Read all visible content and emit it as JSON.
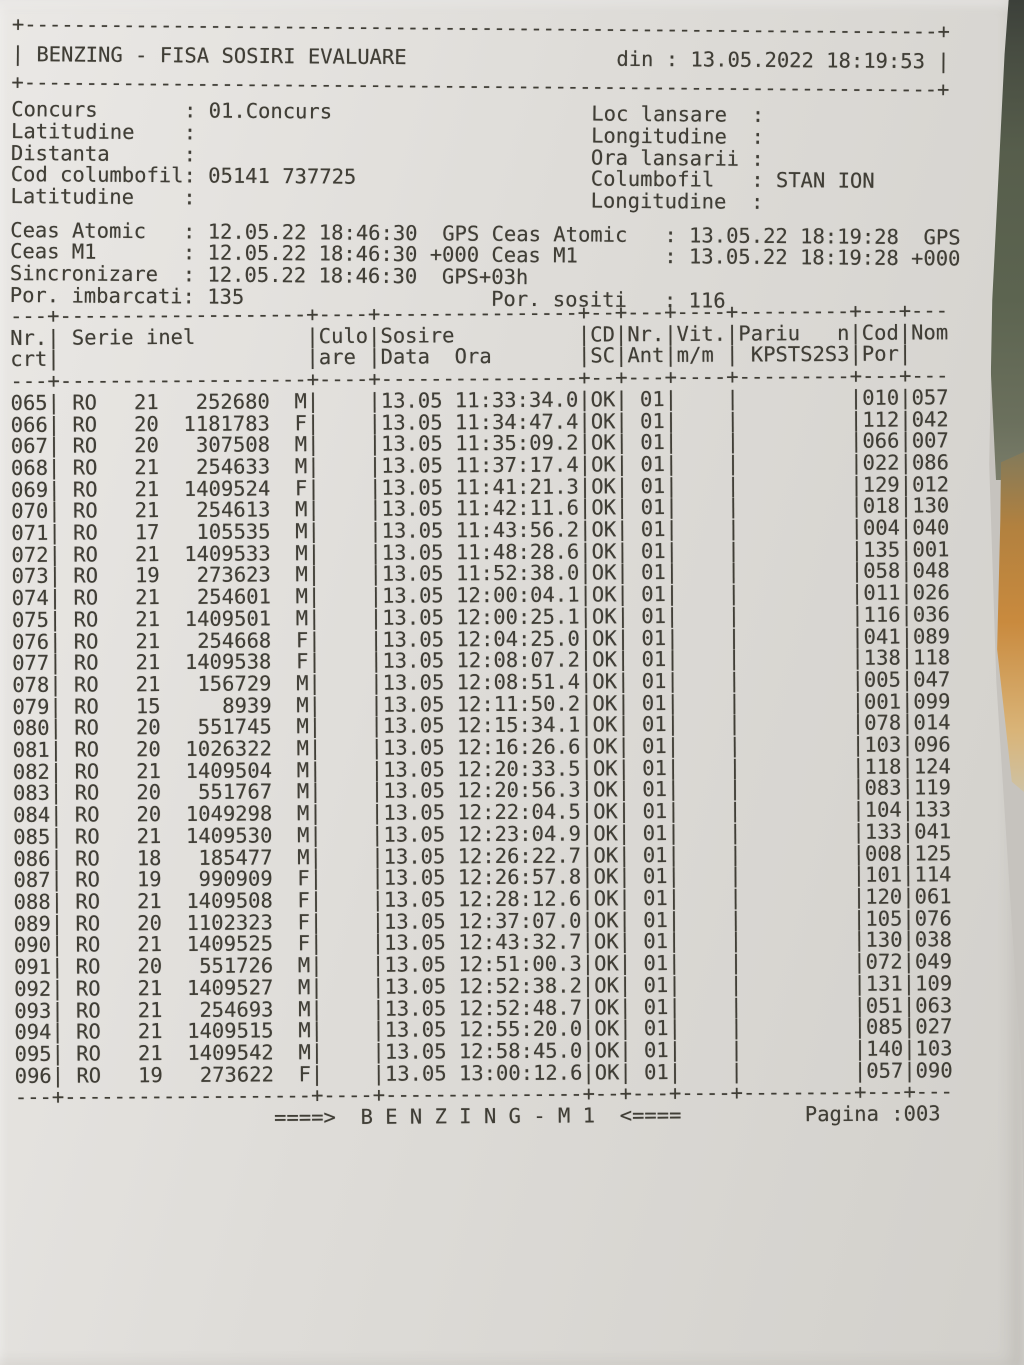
{
  "photo": {
    "paper_color": "#dedcd8",
    "ink_color": "#403e36",
    "spine_green_color": "#5c6450",
    "spine_orange_color": "#c98a3e"
  },
  "header": {
    "title": "BENZING - FISA SOSIRI EVALUARE",
    "din_label": "din :",
    "din_value": "13.05.2022 18:19:53"
  },
  "info": {
    "left": [
      {
        "label": "Concurs",
        "value": "01.Concurs"
      },
      {
        "label": "Latitudine",
        "value": ""
      },
      {
        "label": "Distanta",
        "value": ""
      },
      {
        "label": "Cod columbofil",
        "value": "05141 737725"
      },
      {
        "label": "Latitudine",
        "value": ""
      }
    ],
    "right": [
      {
        "label": "Loc lansare",
        "value": ""
      },
      {
        "label": "Longitudine",
        "value": ""
      },
      {
        "label": "Ora lansarii",
        "value": ""
      },
      {
        "label": "Columbofil",
        "value": "STAN ION"
      },
      {
        "label": "Longitudine",
        "value": ""
      }
    ]
  },
  "clocks": [
    {
      "left": {
        "label": "Ceas Atomic",
        "value": "12.05.22 18:46:30",
        "suffix": "  GPS"
      },
      "right": {
        "label": "Ceas Atomic",
        "value": "13.05.22 18:19:28",
        "suffix": "  GPS"
      }
    },
    {
      "left": {
        "label": "Ceas M1",
        "value": "12.05.22 18:46:30",
        "suffix": " +000"
      },
      "right": {
        "label": "Ceas M1",
        "value": "13.05.22 18:19:28",
        "suffix": " +000"
      }
    },
    {
      "left": {
        "label": "Sincronizare",
        "value": "12.05.22 18:46:30",
        "suffix": "  GPS+03h"
      },
      "right": null
    },
    {
      "left": {
        "label": "Por. imbarcati",
        "value": "135",
        "suffix": ""
      },
      "right": {
        "label": "Por. sositi",
        "value": "116",
        "suffix": ""
      }
    }
  ],
  "table": {
    "separator_line": "---+--------------------+----+----------------+--+---+----+---------+---+---",
    "header_line1": "Nr.| Serie inel         |Culo|Sosire          |CD|Nr.|Vit.|Pariu   n|Cod|Nom",
    "header_line2": "crt|                    |are |Data  Ora       |SC|Ant|m/m | KPSTS2S3|Por|",
    "row_fields": [
      "nr_crt",
      "serie",
      "an",
      "inel",
      "sex",
      "data",
      "ora",
      "cd_sc",
      "nr_ant",
      "cod_por",
      "nom"
    ],
    "rows": [
      [
        "065",
        "RO",
        "21",
        "252680",
        "M",
        "13.05",
        "11:33:34.0",
        "OK",
        "01",
        "010",
        "057"
      ],
      [
        "066",
        "RO",
        "20",
        "1181783",
        "F",
        "13.05",
        "11:34:47.4",
        "OK",
        "01",
        "112",
        "042"
      ],
      [
        "067",
        "RO",
        "20",
        "307508",
        "M",
        "13.05",
        "11:35:09.2",
        "OK",
        "01",
        "066",
        "007"
      ],
      [
        "068",
        "RO",
        "21",
        "254633",
        "M",
        "13.05",
        "11:37:17.4",
        "OK",
        "01",
        "022",
        "086"
      ],
      [
        "069",
        "RO",
        "21",
        "1409524",
        "F",
        "13.05",
        "11:41:21.3",
        "OK",
        "01",
        "129",
        "012"
      ],
      [
        "070",
        "RO",
        "21",
        "254613",
        "M",
        "13.05",
        "11:42:11.6",
        "OK",
        "01",
        "018",
        "130"
      ],
      [
        "071",
        "RO",
        "17",
        "105535",
        "M",
        "13.05",
        "11:43:56.2",
        "OK",
        "01",
        "004",
        "040"
      ],
      [
        "072",
        "RO",
        "21",
        "1409533",
        "M",
        "13.05",
        "11:48:28.6",
        "OK",
        "01",
        "135",
        "001"
      ],
      [
        "073",
        "RO",
        "19",
        "273623",
        "M",
        "13.05",
        "11:52:38.0",
        "OK",
        "01",
        "058",
        "048"
      ],
      [
        "074",
        "RO",
        "21",
        "254601",
        "M",
        "13.05",
        "12:00:04.1",
        "OK",
        "01",
        "011",
        "026"
      ],
      [
        "075",
        "RO",
        "21",
        "1409501",
        "M",
        "13.05",
        "12:00:25.1",
        "OK",
        "01",
        "116",
        "036"
      ],
      [
        "076",
        "RO",
        "21",
        "254668",
        "F",
        "13.05",
        "12:04:25.0",
        "OK",
        "01",
        "041",
        "089"
      ],
      [
        "077",
        "RO",
        "21",
        "1409538",
        "F",
        "13.05",
        "12:08:07.2",
        "OK",
        "01",
        "138",
        "118"
      ],
      [
        "078",
        "RO",
        "21",
        "156729",
        "M",
        "13.05",
        "12:08:51.4",
        "OK",
        "01",
        "005",
        "047"
      ],
      [
        "079",
        "RO",
        "15",
        "8939",
        "M",
        "13.05",
        "12:11:50.2",
        "OK",
        "01",
        "001",
        "099"
      ],
      [
        "080",
        "RO",
        "20",
        "551745",
        "M",
        "13.05",
        "12:15:34.1",
        "OK",
        "01",
        "078",
        "014"
      ],
      [
        "081",
        "RO",
        "20",
        "1026322",
        "M",
        "13.05",
        "12:16:26.6",
        "OK",
        "01",
        "103",
        "096"
      ],
      [
        "082",
        "RO",
        "21",
        "1409504",
        "M",
        "13.05",
        "12:20:33.5",
        "OK",
        "01",
        "118",
        "124"
      ],
      [
        "083",
        "RO",
        "20",
        "551767",
        "M",
        "13.05",
        "12:20:56.3",
        "OK",
        "01",
        "083",
        "119"
      ],
      [
        "084",
        "RO",
        "20",
        "1049298",
        "M",
        "13.05",
        "12:22:04.5",
        "OK",
        "01",
        "104",
        "133"
      ],
      [
        "085",
        "RO",
        "21",
        "1409530",
        "M",
        "13.05",
        "12:23:04.9",
        "OK",
        "01",
        "133",
        "041"
      ],
      [
        "086",
        "RO",
        "18",
        "185477",
        "M",
        "13.05",
        "12:26:22.7",
        "OK",
        "01",
        "008",
        "125"
      ],
      [
        "087",
        "RO",
        "19",
        "990909",
        "F",
        "13.05",
        "12:26:57.8",
        "OK",
        "01",
        "101",
        "114"
      ],
      [
        "088",
        "RO",
        "21",
        "1409508",
        "F",
        "13.05",
        "12:28:12.6",
        "OK",
        "01",
        "120",
        "061"
      ],
      [
        "089",
        "RO",
        "20",
        "1102323",
        "F",
        "13.05",
        "12:37:07.0",
        "OK",
        "01",
        "105",
        "076"
      ],
      [
        "090",
        "RO",
        "21",
        "1409525",
        "F",
        "13.05",
        "12:43:32.7",
        "OK",
        "01",
        "130",
        "038"
      ],
      [
        "091",
        "RO",
        "20",
        "551726",
        "M",
        "13.05",
        "12:51:00.3",
        "OK",
        "01",
        "072",
        "049"
      ],
      [
        "092",
        "RO",
        "21",
        "1409527",
        "M",
        "13.05",
        "12:52:38.2",
        "OK",
        "01",
        "131",
        "109"
      ],
      [
        "093",
        "RO",
        "21",
        "254693",
        "M",
        "13.05",
        "12:52:48.7",
        "OK",
        "01",
        "051",
        "063"
      ],
      [
        "094",
        "RO",
        "21",
        "1409515",
        "M",
        "13.05",
        "12:55:20.0",
        "OK",
        "01",
        "085",
        "027"
      ],
      [
        "095",
        "RO",
        "21",
        "1409542",
        "M",
        "13.05",
        "12:58:45.0",
        "OK",
        "01",
        "140",
        "103"
      ],
      [
        "096",
        "RO",
        "19",
        "273622",
        "F",
        "13.05",
        "13:00:12.6",
        "OK",
        "01",
        "057",
        "090"
      ]
    ]
  },
  "footer": {
    "benzing": "====>  B E N Z I N G - M 1  <====",
    "pagina": "Pagina :003"
  }
}
